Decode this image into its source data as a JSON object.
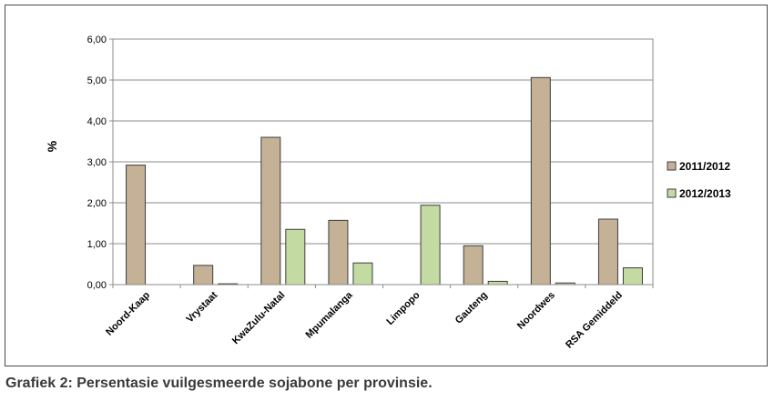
{
  "caption": "Grafiek 2: Persentasie vuilgesmeerde sojabone per provinsie.",
  "chart_data": {
    "type": "bar",
    "title": "",
    "xlabel": "",
    "ylabel": "%",
    "ylim": [
      0,
      6
    ],
    "yticks": [
      "0,00",
      "1,00",
      "2,00",
      "3,00",
      "4,00",
      "5,00",
      "6,00"
    ],
    "grid": true,
    "legend_position": "right",
    "categories": [
      "Noord-Kaap",
      "Vrystaat",
      "KwaZulu-Natal",
      "Mpumalanga",
      "Limpopo",
      "Gauteng",
      "Noordwes",
      "RSA Gemiddeld"
    ],
    "series": [
      {
        "name": "2011/2012",
        "color": "#c4b196",
        "values": [
          2.92,
          0.47,
          3.6,
          1.57,
          0.0,
          0.95,
          5.06,
          1.6
        ]
      },
      {
        "name": "2012/2013",
        "color": "#c3dba3",
        "values": [
          0.0,
          0.02,
          1.35,
          0.53,
          1.94,
          0.08,
          0.04,
          0.41
        ]
      }
    ]
  }
}
